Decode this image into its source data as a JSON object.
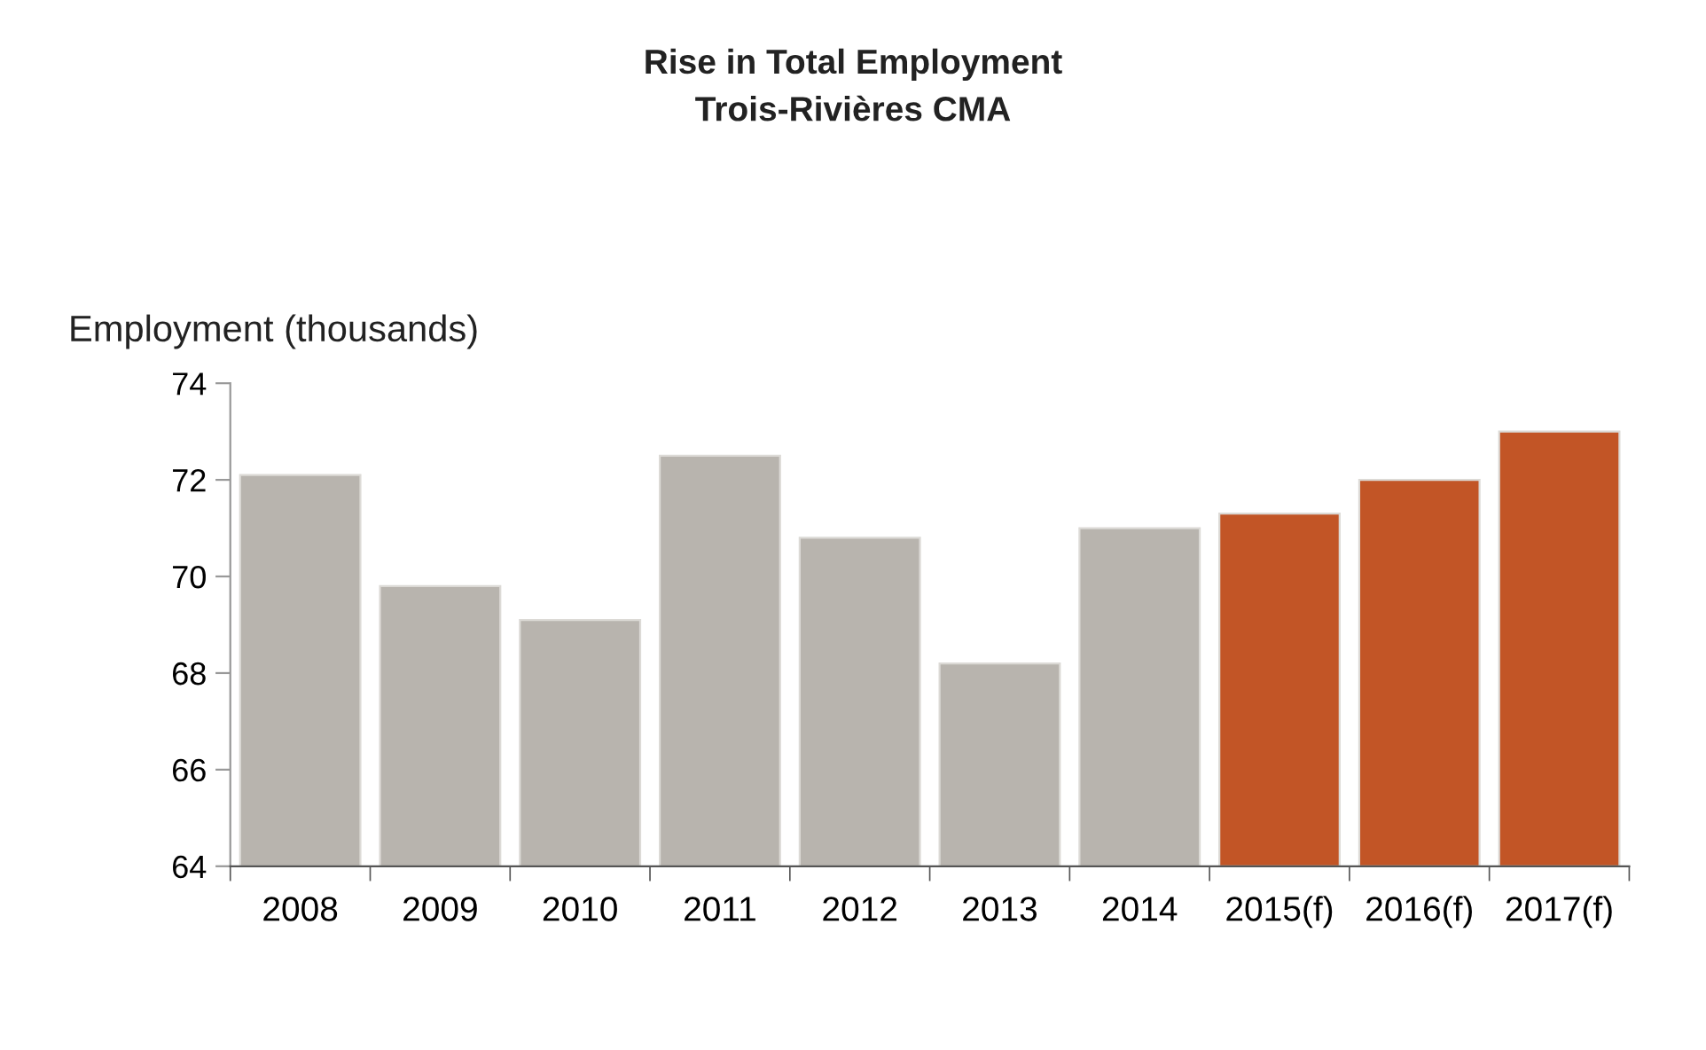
{
  "chart_data": {
    "type": "bar",
    "title": "Rise in Total Employment",
    "subtitle": "Trois-Rivières CMA",
    "ylabel": "Employment (thousands)",
    "categories": [
      "2008",
      "2009",
      "2010",
      "2011",
      "2012",
      "2013",
      "2014",
      "2015(f)",
      "2016(f)",
      "2017(f)"
    ],
    "values": [
      72.1,
      69.8,
      69.1,
      72.5,
      70.8,
      68.2,
      71.0,
      71.3,
      72.0,
      73.0
    ],
    "colors": [
      "#b8b4ae",
      "#b8b4ae",
      "#b8b4ae",
      "#b8b4ae",
      "#b8b4ae",
      "#b8b4ae",
      "#b8b4ae",
      "#c25526",
      "#c25526",
      "#c25526"
    ],
    "ylim": [
      64,
      74
    ],
    "yticks": [
      64,
      66,
      68,
      70,
      72,
      74
    ],
    "grid": false,
    "legend": false
  }
}
